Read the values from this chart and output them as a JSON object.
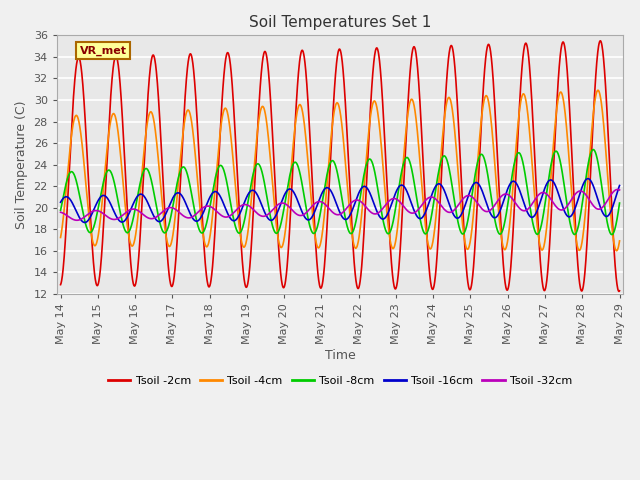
{
  "title": "Soil Temperatures Set 1",
  "xlabel": "Time",
  "ylabel": "Soil Temperature (C)",
  "ylim": [
    12,
    36
  ],
  "yticks": [
    12,
    14,
    16,
    18,
    20,
    22,
    24,
    26,
    28,
    30,
    32,
    34,
    36
  ],
  "background_color": "#e8e8e8",
  "plot_bg_color": "#e0e0e0",
  "grid_color": "#ffffff",
  "legend_labels": [
    "Tsoil -2cm",
    "Tsoil -4cm",
    "Tsoil -8cm",
    "Tsoil -16cm",
    "Tsoil -32cm"
  ],
  "line_colors": [
    "#dd0000",
    "#ff8800",
    "#00cc00",
    "#0000cc",
    "#bb00bb"
  ],
  "annotation_text": "VR_met",
  "days": 15,
  "start_day": 14
}
